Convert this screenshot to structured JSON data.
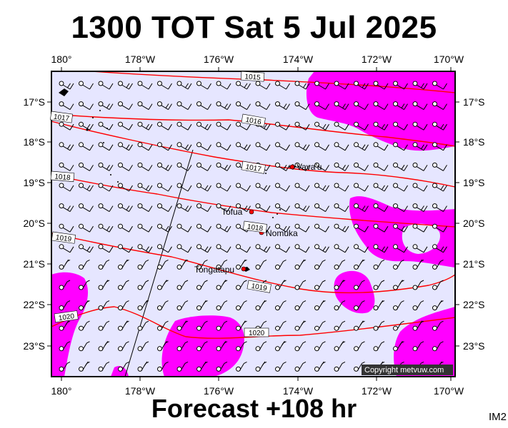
{
  "header": {
    "title": "1300 TOT Sat 5 Jul 2025"
  },
  "footer": {
    "subtitle": "Forecast +108 hr",
    "code": "IM2"
  },
  "copyright": "Copyright metvuw.com",
  "colors": {
    "ocean": "#e6e6ff",
    "rain": "#ff00ff",
    "isobar": "#ff0000",
    "wind": "#000000",
    "place_dot": "#ff0000"
  },
  "axes": {
    "lon_ticks": [
      "180°",
      "178°W",
      "176°W",
      "174°W",
      "172°W",
      "170°W"
    ],
    "lat_ticks": [
      "17°S",
      "18°S",
      "19°S",
      "20°S",
      "21°S",
      "22°S",
      "23°S"
    ]
  },
  "places": [
    {
      "name": "Vava'u",
      "label": "Vava'u"
    },
    {
      "name": "Tofua",
      "label": "Tofua"
    },
    {
      "name": "Nomuka",
      "label": "Nomuka"
    },
    {
      "name": "Tongatapu",
      "label": "Tongatapu"
    }
  ],
  "isobars": [
    {
      "value": "1015"
    },
    {
      "value": "1016"
    },
    {
      "value": "1017"
    },
    {
      "value": "1017"
    },
    {
      "value": "1018"
    },
    {
      "value": "1018"
    },
    {
      "value": "1019"
    },
    {
      "value": "1019"
    },
    {
      "value": "1020"
    },
    {
      "value": "1020"
    }
  ]
}
